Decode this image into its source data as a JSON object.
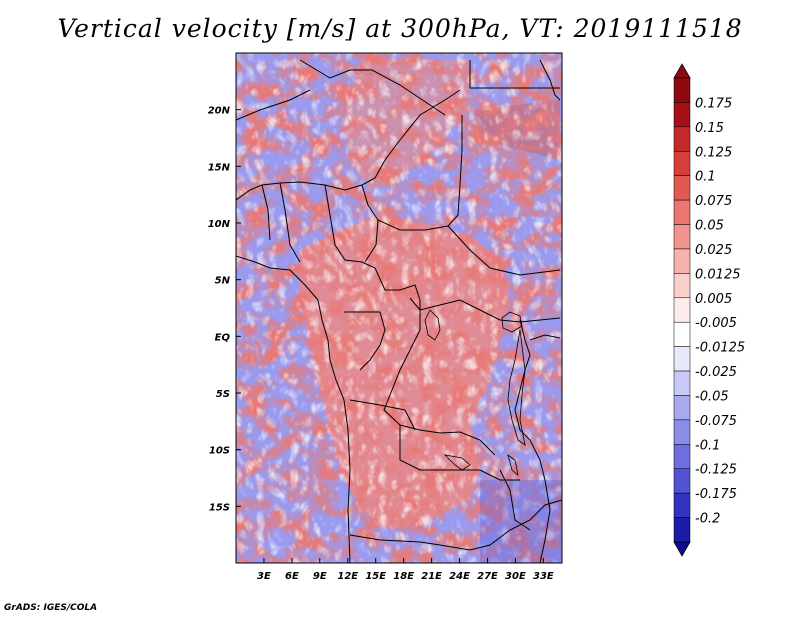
{
  "title": "Vertical velocity [m/s] at 300hPa, VT: 2019111518",
  "credit": "GrADS: IGES/COLA",
  "map": {
    "lon_range": [
      0,
      35
    ],
    "lat_range": [
      -20,
      25
    ],
    "lon_ticks": [
      {
        "value": 3,
        "label": "3E"
      },
      {
        "value": 6,
        "label": "6E"
      },
      {
        "value": 9,
        "label": "9E"
      },
      {
        "value": 12,
        "label": "12E"
      },
      {
        "value": 15,
        "label": "15E"
      },
      {
        "value": 18,
        "label": "18E"
      },
      {
        "value": 21,
        "label": "21E"
      },
      {
        "value": 24,
        "label": "24E"
      },
      {
        "value": 27,
        "label": "27E"
      },
      {
        "value": 30,
        "label": "30E"
      },
      {
        "value": 33,
        "label": "33E"
      }
    ],
    "lat_ticks": [
      {
        "value": 20,
        "label": "20N"
      },
      {
        "value": 15,
        "label": "15N"
      },
      {
        "value": 10,
        "label": "10N"
      },
      {
        "value": 5,
        "label": "5N"
      },
      {
        "value": 0,
        "label": "EQ"
      },
      {
        "value": -5,
        "label": "5S"
      },
      {
        "value": -10,
        "label": "10S"
      },
      {
        "value": -15,
        "label": "15S"
      }
    ]
  },
  "colorbar": {
    "levels": [
      {
        "label": "0.175",
        "color": "#a50f15"
      },
      {
        "label": "0.15",
        "color": "#c42a2a"
      },
      {
        "label": "0.125",
        "color": "#d43f3a"
      },
      {
        "label": "0.1",
        "color": "#e05a52"
      },
      {
        "label": "0.075",
        "color": "#ea766f"
      },
      {
        "label": "0.05",
        "color": "#f2938d"
      },
      {
        "label": "0.025",
        "color": "#f7b2ad"
      },
      {
        "label": "0.0125",
        "color": "#fbd0cc"
      },
      {
        "label": "0.005",
        "color": "#feeceb"
      },
      {
        "label": "-0.005",
        "color": "#ffffff"
      },
      {
        "label": "-0.0125",
        "color": "#e8e8fb"
      },
      {
        "label": "-0.025",
        "color": "#c9c9f6"
      },
      {
        "label": "-0.05",
        "color": "#a9a9f0"
      },
      {
        "label": "-0.075",
        "color": "#8c8ce9"
      },
      {
        "label": "-0.1",
        "color": "#6e6ee0"
      },
      {
        "label": "-0.125",
        "color": "#5252d4"
      },
      {
        "label": "-0.175",
        "color": "#3333c2"
      },
      {
        "label": "-0.2",
        "color": "#1b1ba8"
      }
    ],
    "top_color": "#8e0a10",
    "bottom_color": "#0d0d8c"
  }
}
